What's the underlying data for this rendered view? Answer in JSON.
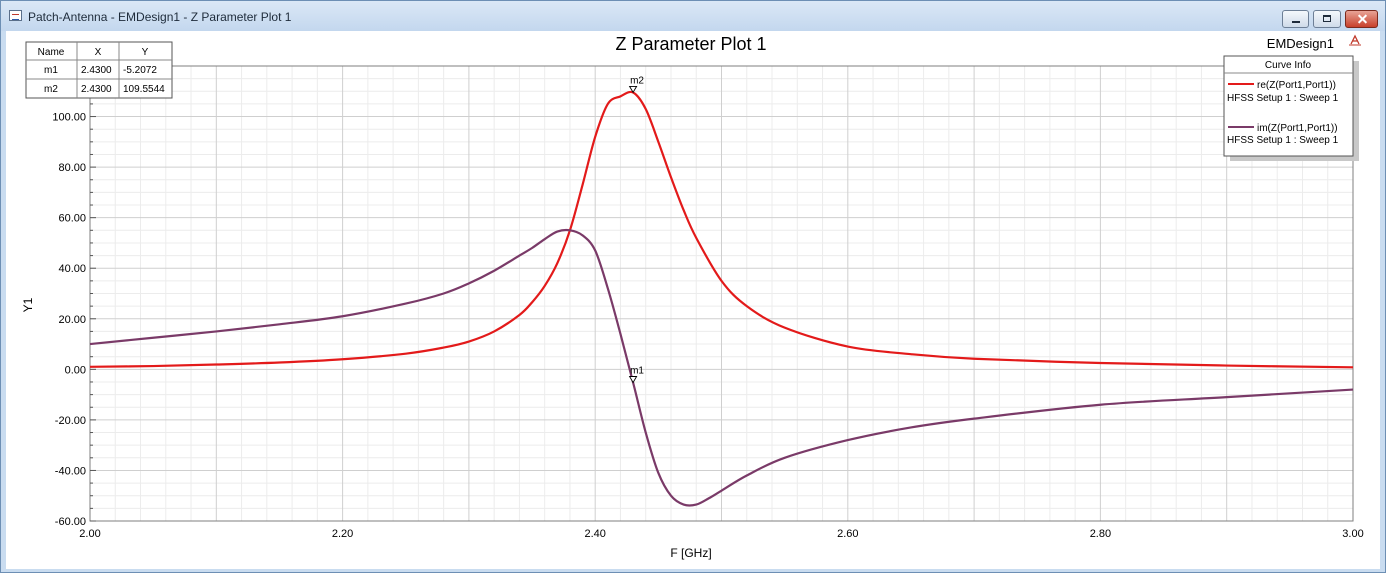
{
  "window": {
    "title": "Patch-Antenna - EMDesign1 - Z Parameter Plot 1"
  },
  "plot": {
    "design_name": "EMDesign1",
    "marker_table": {
      "headers": [
        "Name",
        "X",
        "Y"
      ],
      "rows": [
        {
          "name": "m1",
          "x": "2.4300",
          "y": "-5.2072"
        },
        {
          "name": "m2",
          "x": "2.4300",
          "y": "109.5544"
        }
      ]
    },
    "legend": {
      "title": "Curve Info",
      "entries": [
        {
          "label": "re(Z(Port1,Port1))",
          "setup": "HFSS Setup 1 : Sweep 1",
          "color": "#e31a1a"
        },
        {
          "label": "im(Z(Port1,Port1))",
          "setup": "HFSS Setup 1 : Sweep 1",
          "color": "#7a3a68"
        }
      ]
    },
    "markers": [
      {
        "name": "m1",
        "series": 1,
        "x": 2.43,
        "y": -5.2072
      },
      {
        "name": "m2",
        "series": 0,
        "x": 2.43,
        "y": 109.5544
      }
    ]
  },
  "chart_data": {
    "type": "line",
    "title": "Z Parameter Plot 1",
    "xlabel": "F [GHz]",
    "ylabel": "Y1",
    "xlim": [
      2.0,
      3.0
    ],
    "ylim": [
      -60,
      120
    ],
    "x_ticks": [
      "2.00",
      "2.20",
      "2.40",
      "2.60",
      "2.80",
      "3.00"
    ],
    "y_ticks": [
      "-60.00",
      "-40.00",
      "-20.00",
      "0.00",
      "20.00",
      "40.00",
      "60.00",
      "80.00",
      "100.00"
    ],
    "grid": true,
    "legend_position": "top-right",
    "series": [
      {
        "name": "re(Z(Port1,Port1))",
        "color": "#e31a1a",
        "x": [
          2.0,
          2.05,
          2.1,
          2.15,
          2.2,
          2.25,
          2.28,
          2.3,
          2.32,
          2.34,
          2.35,
          2.36,
          2.37,
          2.38,
          2.39,
          2.4,
          2.41,
          2.42,
          2.43,
          2.44,
          2.45,
          2.46,
          2.47,
          2.48,
          2.5,
          2.52,
          2.55,
          2.6,
          2.65,
          2.7,
          2.8,
          2.9,
          3.0
        ],
        "y": [
          1.0,
          1.3,
          1.9,
          2.7,
          4.0,
          6.2,
          8.6,
          11.0,
          15.0,
          21.5,
          26.5,
          33.0,
          42.0,
          55.0,
          73.0,
          92.0,
          105.0,
          108.0,
          109.5,
          103.0,
          90.0,
          76.0,
          63.0,
          52.0,
          35.0,
          25.0,
          16.5,
          9.0,
          6.0,
          4.2,
          2.5,
          1.5,
          0.8
        ]
      },
      {
        "name": "im(Z(Port1,Port1))",
        "color": "#7a3a68",
        "x": [
          2.0,
          2.05,
          2.1,
          2.15,
          2.2,
          2.25,
          2.28,
          2.3,
          2.32,
          2.34,
          2.35,
          2.36,
          2.37,
          2.38,
          2.39,
          2.4,
          2.41,
          2.42,
          2.43,
          2.44,
          2.45,
          2.46,
          2.47,
          2.48,
          2.49,
          2.5,
          2.52,
          2.55,
          2.6,
          2.65,
          2.7,
          2.8,
          2.9,
          3.0
        ],
        "y": [
          10.0,
          12.5,
          15.0,
          17.8,
          21.0,
          26.0,
          30.0,
          34.0,
          39.0,
          45.0,
          48.0,
          51.5,
          54.5,
          55.0,
          53.0,
          47.0,
          32.0,
          14.0,
          -5.2,
          -25.0,
          -41.0,
          -50.0,
          -53.5,
          -53.5,
          -51.0,
          -48.0,
          -42.0,
          -35.0,
          -28.0,
          -23.0,
          -19.5,
          -14.0,
          -11.0,
          -8.0
        ]
      }
    ]
  }
}
